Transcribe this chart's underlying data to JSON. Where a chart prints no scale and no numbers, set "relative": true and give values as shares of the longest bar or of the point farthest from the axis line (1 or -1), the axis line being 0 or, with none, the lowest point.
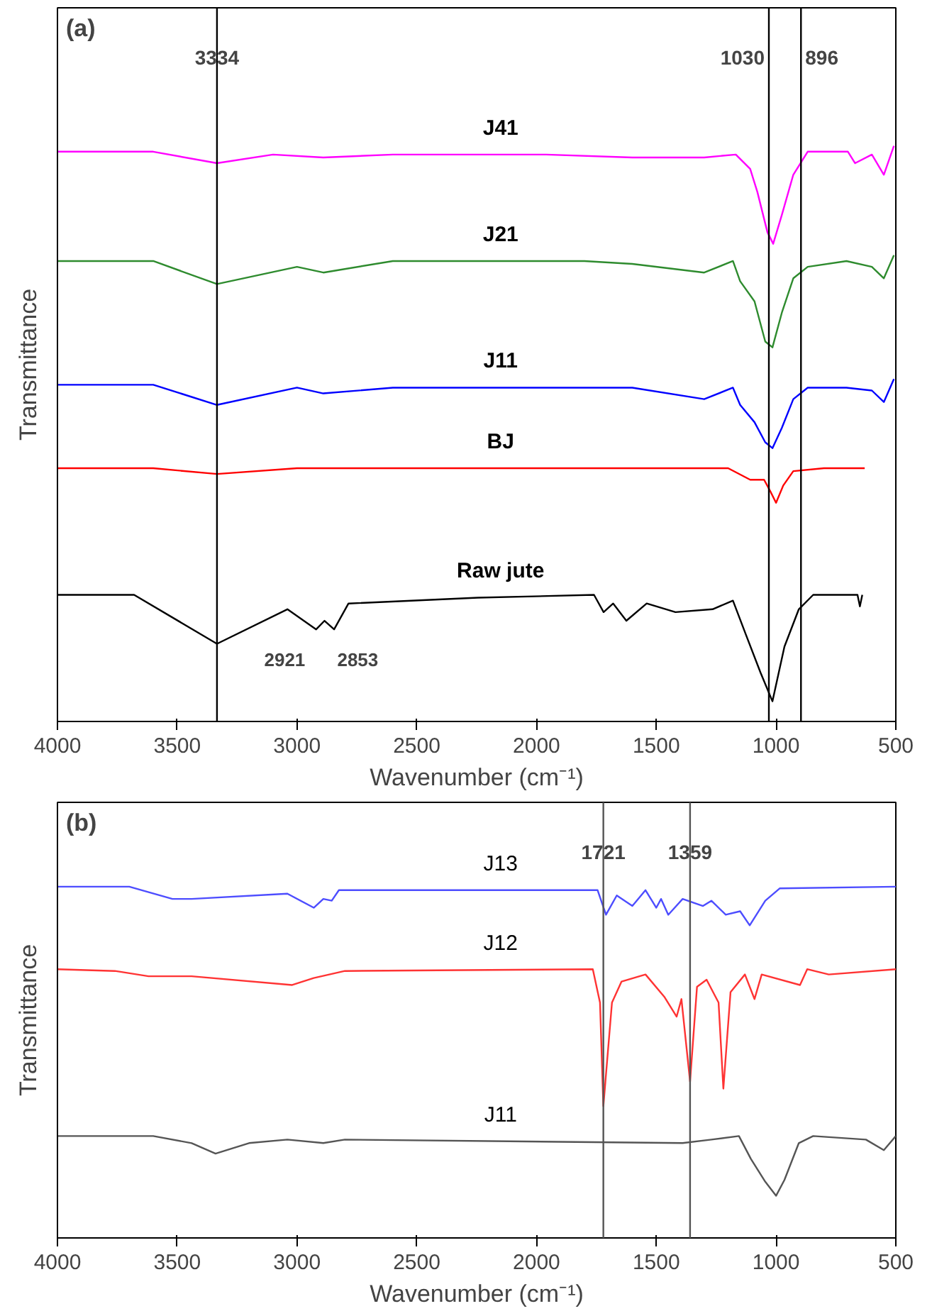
{
  "chart_data": [
    {
      "type": "line",
      "title": "(a)",
      "xlabel": "Wavenumber (cm⁻¹)",
      "ylabel": "Transmittance",
      "relative": true,
      "xlim": [
        4000,
        500
      ],
      "xticks": [
        4000,
        3500,
        3000,
        2500,
        2000,
        1500,
        1000,
        500
      ],
      "tick_labels": "x",
      "grid": false,
      "legend": false,
      "series": [
        {
          "name": "J41",
          "color": "#ff00ff",
          "x": [
            4000,
            3600,
            3334,
            3100,
            2890,
            2600,
            2200,
            1960,
            1600,
            1300,
            1168,
            1108,
            1078,
            1036,
            1012,
            976,
            928,
            868,
            700,
            670,
            600,
            550,
            508
          ],
          "values": [
            0.99,
            0.99,
            0.97,
            0.985,
            0.98,
            0.985,
            0.985,
            0.985,
            0.98,
            0.98,
            0.985,
            0.96,
            0.92,
            0.85,
            0.83,
            0.88,
            0.95,
            0.99,
            0.99,
            0.97,
            0.985,
            0.95,
            1.0
          ]
        },
        {
          "name": "J21",
          "color": "#2e8b2e",
          "x": [
            4000,
            3600,
            3334,
            3000,
            2890,
            2600,
            2200,
            1800,
            1600,
            1300,
            1180,
            1150,
            1090,
            1045,
            1015,
            976,
            928,
            868,
            706,
            600,
            550,
            508
          ],
          "values": [
            0.8,
            0.8,
            0.76,
            0.79,
            0.78,
            0.8,
            0.8,
            0.8,
            0.795,
            0.78,
            0.8,
            0.765,
            0.73,
            0.66,
            0.65,
            0.71,
            0.77,
            0.79,
            0.8,
            0.79,
            0.77,
            0.81
          ]
        },
        {
          "name": "J11",
          "color": "#0000ff",
          "x": [
            4000,
            3600,
            3334,
            3000,
            2890,
            2600,
            2200,
            1800,
            1600,
            1300,
            1180,
            1150,
            1090,
            1045,
            1015,
            976,
            928,
            868,
            706,
            600,
            550,
            508
          ],
          "values": [
            0.585,
            0.585,
            0.55,
            0.58,
            0.57,
            0.58,
            0.58,
            0.58,
            0.58,
            0.56,
            0.58,
            0.55,
            0.52,
            0.485,
            0.475,
            0.51,
            0.56,
            0.58,
            0.58,
            0.575,
            0.555,
            0.595
          ]
        },
        {
          "name": "BJ",
          "color": "#ff0000",
          "x": [
            4000,
            3600,
            3334,
            3000,
            2600,
            2200,
            1800,
            1400,
            1200,
            1108,
            1050,
            1024,
            1000,
            970,
            928,
            800,
            630
          ],
          "values": [
            0.44,
            0.44,
            0.43,
            0.44,
            0.44,
            0.44,
            0.44,
            0.44,
            0.44,
            0.42,
            0.42,
            0.4,
            0.38,
            0.41,
            0.435,
            0.44,
            0.44
          ]
        },
        {
          "name": "Raw jute",
          "color": "#000000",
          "x": [
            4000,
            3680,
            3334,
            3040,
            2920,
            2885,
            2845,
            2785,
            2245,
            1760,
            1720,
            1680,
            1625,
            1540,
            1420,
            1265,
            1180,
            1125,
            1065,
            1015,
            965,
            905,
            845,
            660,
            650,
            640
          ],
          "values": [
            0.22,
            0.22,
            0.135,
            0.195,
            0.16,
            0.175,
            0.16,
            0.205,
            0.215,
            0.22,
            0.19,
            0.205,
            0.175,
            0.205,
            0.19,
            0.195,
            0.21,
            0.15,
            0.085,
            0.035,
            0.13,
            0.195,
            0.22,
            0.22,
            0.2,
            0.22
          ]
        }
      ],
      "ref_lines": [
        {
          "axis": "x",
          "value": 3334,
          "label": "3334",
          "color": "#000000"
        },
        {
          "axis": "x",
          "value": 1030,
          "label": "1030",
          "color": "#000000"
        },
        {
          "axis": "x",
          "value": 896,
          "label": "896",
          "color": "#000000"
        }
      ],
      "annotations": [
        {
          "text": "2921",
          "x": 2921,
          "y": 0.16
        },
        {
          "text": "2853",
          "x": 2853,
          "y": 0.16
        }
      ]
    },
    {
      "type": "line",
      "title": "(b)",
      "xlabel": "Wavenumber (cm⁻¹)",
      "ylabel": "Transmittance",
      "relative": true,
      "xlim": [
        4000,
        500
      ],
      "xticks": [
        4000,
        3500,
        3000,
        2500,
        2000,
        1500,
        1000,
        500
      ],
      "tick_labels": "x",
      "grid": false,
      "legend": false,
      "series": [
        {
          "name": "J13",
          "color": "#4d4dff",
          "x": [
            4000,
            3700,
            3520,
            3440,
            3040,
            2930,
            2890,
            2855,
            2825,
            2200,
            1745,
            1710,
            1665,
            1600,
            1545,
            1500,
            1480,
            1450,
            1390,
            1305,
            1270,
            1210,
            1150,
            1110,
            1045,
            985,
            500
          ],
          "values": [
            1.0,
            1.0,
            0.965,
            0.965,
            0.98,
            0.94,
            0.965,
            0.96,
            0.99,
            0.99,
            0.99,
            0.92,
            0.975,
            0.945,
            0.99,
            0.94,
            0.965,
            0.92,
            0.965,
            0.945,
            0.96,
            0.92,
            0.93,
            0.89,
            0.96,
            0.995,
            1.0
          ]
        },
        {
          "name": "J12",
          "color": "#ff3333",
          "x": [
            4000,
            3760,
            3620,
            3440,
            3020,
            2930,
            2800,
            1765,
            1735,
            1721,
            1685,
            1645,
            1545,
            1465,
            1415,
            1395,
            1359,
            1330,
            1290,
            1240,
            1220,
            1190,
            1130,
            1090,
            1060,
            900,
            870,
            780,
            500
          ],
          "values": [
            0.765,
            0.76,
            0.745,
            0.745,
            0.72,
            0.74,
            0.76,
            0.765,
            0.67,
            0.375,
            0.67,
            0.73,
            0.75,
            0.685,
            0.63,
            0.68,
            0.445,
            0.715,
            0.735,
            0.67,
            0.425,
            0.7,
            0.75,
            0.68,
            0.75,
            0.72,
            0.765,
            0.75,
            0.765
          ]
        },
        {
          "name": "J11",
          "color": "#555555",
          "x": [
            4000,
            3600,
            3440,
            3340,
            3200,
            3040,
            2890,
            2800,
            1390,
            1270,
            1155,
            1105,
            1045,
            1000,
            965,
            905,
            845,
            625,
            550,
            500
          ],
          "values": [
            0.29,
            0.29,
            0.27,
            0.24,
            0.27,
            0.28,
            0.27,
            0.28,
            0.27,
            0.28,
            0.29,
            0.225,
            0.16,
            0.12,
            0.165,
            0.27,
            0.29,
            0.28,
            0.25,
            0.29
          ]
        }
      ],
      "ref_lines": [
        {
          "axis": "x",
          "value": 1721,
          "label": "1721",
          "color": "#555555"
        },
        {
          "axis": "x",
          "value": 1359,
          "label": "1359",
          "color": "#555555"
        }
      ]
    }
  ]
}
